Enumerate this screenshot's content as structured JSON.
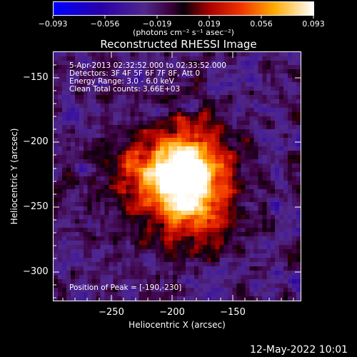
{
  "colorbar": {
    "tick_labels": [
      "−0.093",
      "−0.056",
      "−0.019",
      "0.019",
      "0.056",
      "0.093"
    ],
    "units": "(photons cm⁻² s⁻¹ asec⁻²)"
  },
  "image": {
    "title": "Reconstructed RHESSI Image",
    "info": {
      "line1": "5-Apr-2013 02:32:52.000 to 02:33:52.000",
      "line2": "Detectors: 3F 4F 5F 6F 7F 8F, Att 0",
      "line3": "Energy Range: 3.0 - 6.0 keV",
      "line4": "Clean    Total counts: 3.66E+03"
    },
    "peak_text": "Position of Peak = [-190,-230]",
    "x_axis_label": "Heliocentric X (arcsec)",
    "y_axis_label": "Heliocentric Y (arcsec)",
    "x_ticks": [
      "−250",
      "−200",
      "−150"
    ],
    "y_ticks": [
      "−150",
      "−200",
      "−250",
      "−300"
    ],
    "peak_position": [
      -190,
      -230
    ],
    "x_range": [
      -298,
      -102
    ],
    "y_range": [
      -128,
      -323
    ]
  },
  "footer": {
    "date": "12-May-2022 10:01"
  },
  "colors": {
    "background": "#000000",
    "text": "#ffffff"
  }
}
